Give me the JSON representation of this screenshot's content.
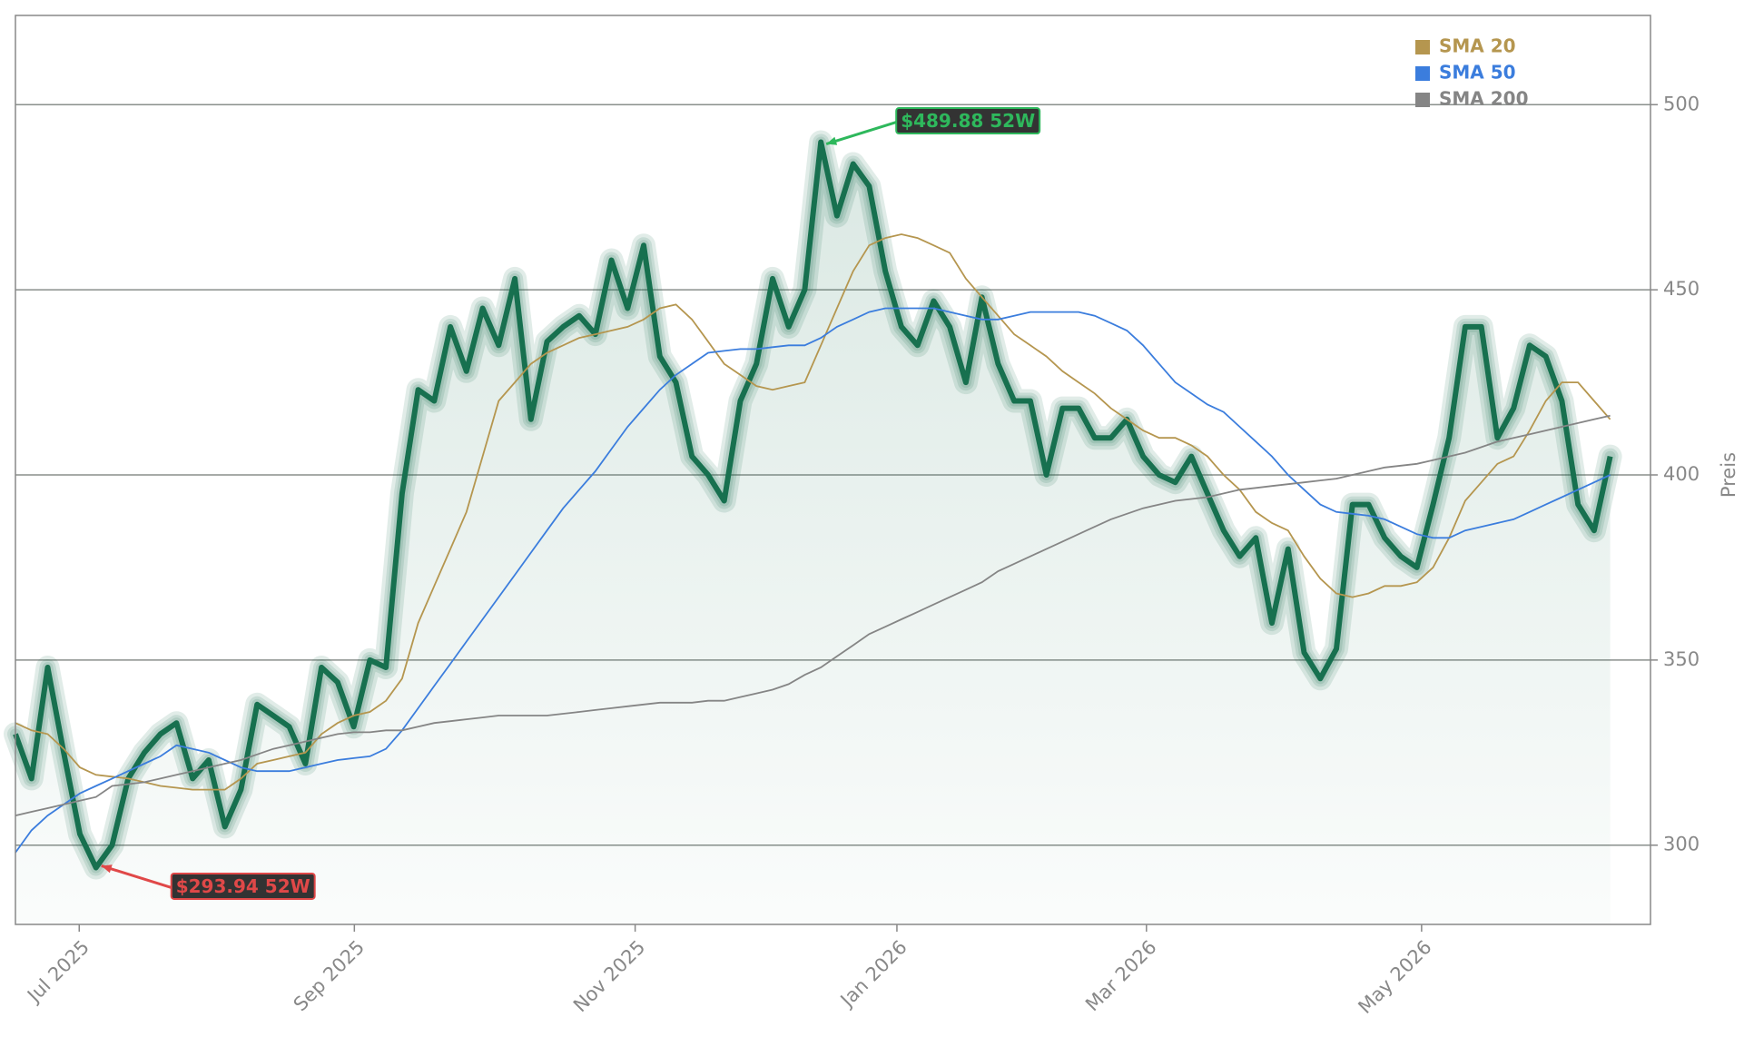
{
  "chart_data": {
    "type": "line",
    "y_label": "Preis",
    "xlim": [
      0,
      101.5
    ],
    "xticks": [
      {
        "value": 3.96,
        "label": "Jul 2025"
      },
      {
        "value": 21.04,
        "label": "Sep 2025"
      },
      {
        "value": 38.47,
        "label": "Nov 2025"
      },
      {
        "value": 54.72,
        "label": "Jan 2026"
      },
      {
        "value": 70.21,
        "label": "Mar 2026"
      },
      {
        "value": 87.29,
        "label": "May 2026"
      }
    ],
    "ylim": [
      278.6,
      524.1
    ],
    "yticks": [
      300,
      350,
      400,
      450,
      500
    ],
    "grid": true,
    "legend": "upper right",
    "color": "#17704f",
    "values": [
      330,
      318,
      348,
      325,
      303,
      293.94,
      300,
      318,
      325,
      330,
      333,
      318,
      323,
      305,
      315,
      338,
      335,
      332,
      322,
      348,
      344,
      332,
      350,
      348,
      395,
      423,
      420,
      440,
      428,
      445,
      435,
      453,
      415,
      436,
      440,
      443,
      438,
      458,
      445,
      462,
      432,
      425,
      405,
      400,
      393,
      420,
      430,
      453,
      440,
      450,
      489.88,
      470,
      484,
      478,
      455,
      440,
      435,
      447,
      440,
      425,
      448,
      430,
      420,
      420,
      400,
      418,
      418,
      410,
      410,
      415,
      405,
      400,
      398,
      405,
      395,
      385,
      378,
      383,
      360,
      380,
      352,
      345,
      353,
      392,
      392,
      383,
      378,
      375,
      392,
      410,
      440,
      440,
      410,
      418,
      435,
      432,
      420,
      392,
      385,
      405
    ],
    "series": [
      {
        "name": "SMA 20",
        "color": "#b5964f",
        "values": [
          333,
          331,
          330,
          326,
          321,
          319,
          318.5,
          318,
          317,
          316,
          315.5,
          315,
          315,
          315,
          318,
          322,
          323,
          324,
          325,
          330,
          333,
          335,
          336,
          339,
          345,
          360,
          370,
          380,
          390,
          405,
          420,
          425,
          430,
          433,
          435,
          437,
          438,
          439,
          440,
          442,
          445,
          446,
          442,
          436,
          430,
          427,
          424,
          423,
          424,
          425,
          435,
          445,
          455,
          462,
          464,
          465,
          464,
          462,
          460,
          453,
          448,
          443,
          438,
          435,
          432,
          428,
          425,
          422,
          418,
          415,
          412,
          410,
          410,
          408,
          405,
          400,
          396,
          390,
          387,
          385,
          378,
          372,
          368,
          367,
          368,
          370,
          370,
          371,
          375,
          383,
          393,
          398,
          403,
          405,
          412,
          420,
          425,
          425,
          420,
          415
        ]
      },
      {
        "name": "SMA 50",
        "color": "#3b7ddd",
        "values": [
          298,
          304,
          308,
          311,
          314,
          316,
          318,
          320,
          322,
          324,
          327,
          326,
          325,
          323,
          321,
          320,
          320,
          320,
          321,
          322,
          323,
          323.5,
          324,
          326,
          331,
          337,
          343,
          349,
          355,
          361,
          367,
          373,
          379,
          385,
          391,
          396,
          401,
          407,
          413,
          418,
          423,
          427,
          430,
          433,
          433.5,
          434,
          434,
          434.5,
          435,
          435,
          437,
          440,
          442,
          444,
          445,
          445,
          445,
          445,
          444,
          443,
          442,
          442,
          443,
          444,
          444,
          444,
          444,
          443,
          441,
          439,
          435,
          430,
          425,
          422,
          419,
          417,
          413,
          409,
          405,
          400,
          396,
          392,
          390,
          389.5,
          389,
          388,
          386,
          384,
          383,
          383,
          385,
          386,
          387,
          388,
          390,
          392,
          394,
          396,
          398,
          400
        ]
      },
      {
        "name": "SMA 200",
        "color": "#858585",
        "values": [
          308,
          309,
          310,
          311,
          312,
          313,
          316,
          316.5,
          317,
          318,
          319,
          320,
          321,
          322,
          323,
          324.5,
          326,
          327,
          328,
          329,
          330,
          330.5,
          330.5,
          331,
          331,
          332,
          333,
          333.5,
          334,
          334.5,
          335,
          335,
          335,
          335,
          335.5,
          336,
          336.5,
          337,
          337.5,
          338,
          338.5,
          338.5,
          338.5,
          339,
          339,
          340,
          341,
          342,
          343.5,
          346,
          348,
          351,
          354,
          357,
          359,
          361,
          363,
          365,
          367,
          369,
          371,
          374,
          376,
          378,
          380,
          382,
          384,
          386,
          388,
          389.5,
          391,
          392,
          393,
          393.5,
          394,
          395,
          396,
          396.5,
          397,
          397.5,
          398,
          398.5,
          399,
          400,
          401,
          402,
          402.5,
          403,
          404,
          405,
          406,
          407.5,
          409,
          410,
          411,
          412,
          413,
          414,
          415,
          416
        ]
      }
    ],
    "annotations": [
      {
        "label": "$489.88 52W",
        "x": 50,
        "value": 489.88,
        "color": "#2eb85c"
      },
      {
        "label": "$293.94 52W",
        "x": 5,
        "value": 293.94,
        "color": "#e04848"
      }
    ]
  }
}
